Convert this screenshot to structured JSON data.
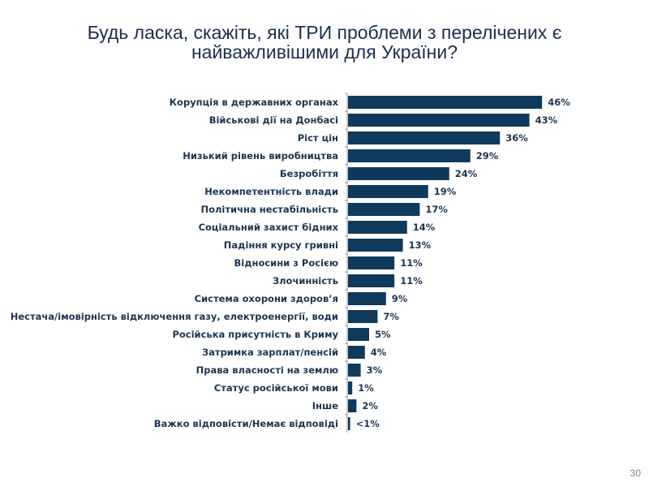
{
  "chart_data": {
    "type": "bar",
    "orientation": "horizontal",
    "title_lines": [
      "Будь ласка, скажіть, які ТРИ проблеми з перелічених є",
      "найважливішими для України?"
    ],
    "categories": [
      "Корупція в державних органах",
      "Військові дії на Донбасі",
      "Ріст цін",
      "Низький рівень виробництва",
      "Безробіття",
      "Некомпетентність влади",
      "Політична нестабільність",
      "Соціальний захист бідних",
      "Падіння курсу гривні",
      "Відносини з Росією",
      "Злочинність",
      "Система охорони здоров’я",
      "Нестача/імовірність відключення газу, електроенергії, води",
      "Російська присутність в Криму",
      "Затримка зарплат/пенсій",
      "Права власності на землю",
      "Статус російської мови",
      "Інше",
      "Важко відповісти/Немає відповіді"
    ],
    "values": [
      46,
      43,
      36,
      29,
      24,
      19,
      17,
      14,
      13,
      11,
      11,
      9,
      7,
      5,
      4,
      3,
      1,
      2,
      0.5
    ],
    "value_labels": [
      "46%",
      "43%",
      "36%",
      "29%",
      "24%",
      "19%",
      "17%",
      "14%",
      "13%",
      "11%",
      "11%",
      "9%",
      "7%",
      "5%",
      "4%",
      "3%",
      "1%",
      "2%",
      "<1%"
    ],
    "unit": "%",
    "xlim": [
      0,
      50
    ],
    "grid": false,
    "legend": "none",
    "bar_color": "#0f3a5c"
  },
  "page_number": "30"
}
